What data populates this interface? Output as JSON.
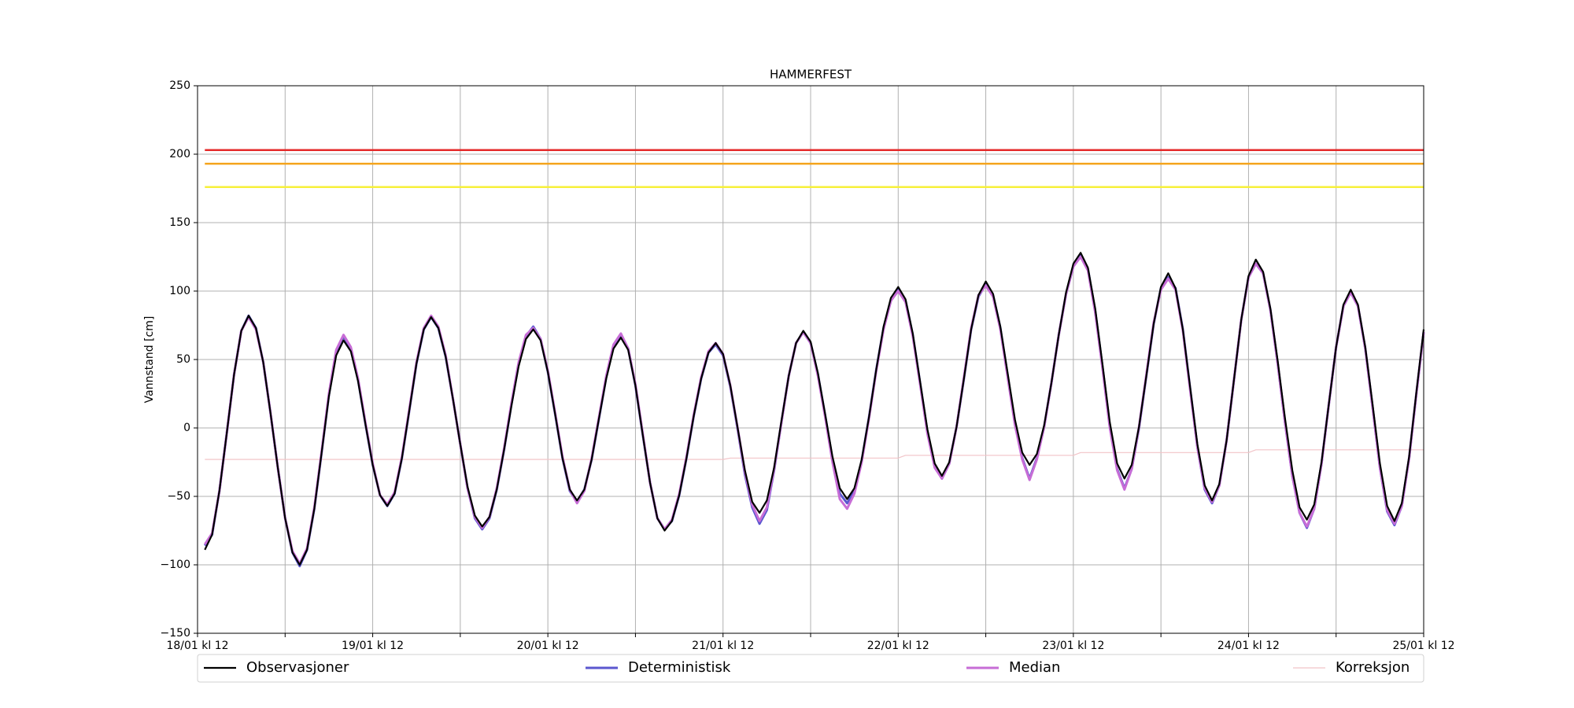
{
  "chart_data": {
    "type": "line",
    "title": "HAMMERFEST",
    "ylabel": "Vannstand [cm]",
    "xlim": [
      0,
      168
    ],
    "ylim": [
      -150,
      250
    ],
    "yticks": [
      {
        "value": -150,
        "label": "−150"
      },
      {
        "value": -100,
        "label": "−100"
      },
      {
        "value": -50,
        "label": "−50"
      },
      0,
      50,
      100,
      150,
      200,
      250
    ],
    "xticks": [
      {
        "value": 0,
        "label": "18/01 kl 12"
      },
      {
        "value": 24,
        "label": "19/01 kl 12"
      },
      {
        "value": 48,
        "label": "20/01 kl 12"
      },
      {
        "value": 72,
        "label": "21/01 kl 12"
      },
      {
        "value": 96,
        "label": "22/01 kl 12"
      },
      {
        "value": 120,
        "label": "23/01 kl 12"
      },
      {
        "value": 144,
        "label": "24/01 kl 12"
      },
      {
        "value": 168,
        "label": "25/01 kl 12"
      }
    ],
    "xminor_ticks": [
      12,
      36,
      60,
      84,
      108,
      132,
      156
    ],
    "grid": true,
    "legend": "below",
    "thresholds": [
      {
        "value": 203,
        "color": "#e42a2a",
        "xlim": [
          1,
          168
        ]
      },
      {
        "value": 193,
        "color": "#f5a41c",
        "xlim": [
          1,
          168
        ]
      },
      {
        "value": 176,
        "color": "#f7f03a",
        "xlim": [
          1,
          168
        ]
      }
    ],
    "x": [
      1,
      2,
      3,
      4,
      5,
      6,
      7,
      8,
      9,
      10,
      11,
      12,
      13,
      14,
      15,
      16,
      17,
      18,
      19,
      20,
      21,
      22,
      23,
      24,
      25,
      26,
      27,
      28,
      29,
      30,
      31,
      32,
      33,
      34,
      35,
      36,
      37,
      38,
      39,
      40,
      41,
      42,
      43,
      44,
      45,
      46,
      47,
      48,
      49,
      50,
      51,
      52,
      53,
      54,
      55,
      56,
      57,
      58,
      59,
      60,
      61,
      62,
      63,
      64,
      65,
      66,
      67,
      68,
      69,
      70,
      71,
      72,
      73,
      74,
      75,
      76,
      77,
      78,
      79,
      80,
      81,
      82,
      83,
      84,
      85,
      86,
      87,
      88,
      89,
      90,
      91,
      92,
      93,
      94,
      95,
      96,
      97,
      98,
      99,
      100,
      101,
      102,
      103,
      104,
      105,
      106,
      107,
      108,
      109,
      110,
      111,
      112,
      113,
      114,
      115,
      116,
      117,
      118,
      119,
      120,
      121,
      122,
      123,
      124,
      125,
      126,
      127,
      128,
      129,
      130,
      131,
      132,
      133,
      134,
      135,
      136,
      137,
      138,
      139,
      140,
      141,
      142,
      143,
      144,
      145,
      146,
      147,
      148,
      149,
      150,
      151,
      152,
      153,
      154,
      155,
      156,
      157,
      158,
      159,
      160,
      161,
      162,
      163,
      164,
      165,
      166,
      167,
      168
    ],
    "series": [
      {
        "name": "Observasjoner",
        "color": "#000000",
        "width": 2.2,
        "values": [
          -89,
          -78,
          -46,
          -4,
          39,
          71,
          82,
          73,
          48,
          11,
          -29,
          -66,
          -91,
          -100,
          -89,
          -59,
          -18,
          23,
          53,
          64,
          56,
          34,
          3,
          -27,
          -49,
          -57,
          -48,
          -22,
          12,
          47,
          72,
          81,
          73,
          52,
          21,
          -12,
          -43,
          -64,
          -72,
          -65,
          -45,
          -16,
          16,
          45,
          65,
          72,
          64,
          41,
          10,
          -22,
          -45,
          -53,
          -45,
          -23,
          7,
          36,
          58,
          66,
          57,
          31,
          -5,
          -40,
          -66,
          -75,
          -68,
          -49,
          -22,
          9,
          36,
          55,
          62,
          54,
          31,
          0,
          -31,
          -54,
          -62,
          -53,
          -29,
          5,
          38,
          62,
          71,
          63,
          40,
          10,
          -21,
          -44,
          -52,
          -44,
          -23,
          8,
          43,
          74,
          95,
          103,
          94,
          69,
          34,
          -1,
          -26,
          -35,
          -25,
          1,
          36,
          72,
          97,
          107,
          98,
          74,
          40,
          6,
          -18,
          -27,
          -19,
          2,
          33,
          68,
          99,
          120,
          128,
          117,
          87,
          46,
          4,
          -26,
          -37,
          -27,
          1,
          38,
          76,
          103,
          113,
          102,
          72,
          30,
          -12,
          -42,
          -53,
          -41,
          -9,
          35,
          79,
          111,
          123,
          114,
          87,
          49,
          7,
          -31,
          -58,
          -67,
          -56,
          -25,
          17,
          59,
          90,
          101,
          90,
          59,
          17,
          -26,
          -57,
          -68,
          -55,
          -21,
          26,
          72
        ]
      },
      {
        "name": "Deterministisk",
        "color": "#5b57cf",
        "width": 3,
        "values": [
          -86,
          -78,
          -46,
          -4,
          39,
          71,
          82,
          73,
          48,
          11,
          -29,
          -66,
          -91,
          -101,
          -89,
          -59,
          -18,
          24,
          56,
          67,
          58,
          35,
          3,
          -27,
          -49,
          -57,
          -48,
          -22,
          12,
          47,
          72,
          81,
          73,
          52,
          21,
          -12,
          -44,
          -66,
          -74,
          -66,
          -45,
          -16,
          17,
          47,
          67,
          74,
          65,
          41,
          10,
          -22,
          -46,
          -54,
          -45,
          -23,
          7,
          37,
          60,
          68,
          58,
          31,
          -5,
          -40,
          -66,
          -74,
          -68,
          -49,
          -22,
          9,
          36,
          55,
          61,
          53,
          30,
          -1,
          -34,
          -58,
          -70,
          -60,
          -31,
          4,
          38,
          62,
          70,
          62,
          39,
          9,
          -23,
          -48,
          -55,
          -46,
          -24,
          8,
          43,
          73,
          93,
          101,
          93,
          68,
          33,
          -3,
          -28,
          -37,
          -26,
          1,
          36,
          72,
          96,
          105,
          97,
          73,
          38,
          3,
          -22,
          -37,
          -22,
          1,
          33,
          68,
          98,
          118,
          126,
          116,
          85,
          44,
          1,
          -30,
          -44,
          -30,
          0,
          38,
          76,
          102,
          110,
          102,
          72,
          29,
          -14,
          -45,
          -55,
          -42,
          -9,
          35,
          79,
          110,
          120,
          113,
          86,
          47,
          4,
          -35,
          -62,
          -73,
          -59,
          -26,
          17,
          59,
          89,
          99,
          89,
          58,
          15,
          -29,
          -61,
          -71,
          -57,
          -22,
          25,
          70
        ]
      },
      {
        "name": "Median",
        "color": "#c76dd6",
        "width": 3,
        "values": [
          -85,
          -77,
          -46,
          -4,
          39,
          71,
          81,
          72,
          48,
          11,
          -29,
          -66,
          -90,
          -99,
          -88,
          -58,
          -17,
          25,
          57,
          68,
          59,
          36,
          4,
          -26,
          -49,
          -56,
          -47,
          -21,
          13,
          48,
          73,
          82,
          74,
          53,
          21,
          -12,
          -44,
          -65,
          -73,
          -65,
          -44,
          -15,
          18,
          48,
          68,
          73,
          65,
          42,
          11,
          -21,
          -45,
          -55,
          -46,
          -22,
          8,
          38,
          61,
          69,
          58,
          32,
          -4,
          -40,
          -66,
          -74,
          -67,
          -48,
          -21,
          10,
          37,
          56,
          62,
          54,
          31,
          0,
          -32,
          -56,
          -68,
          -58,
          -30,
          4,
          38,
          62,
          70,
          62,
          38,
          8,
          -25,
          -52,
          -59,
          -48,
          -25,
          7,
          42,
          72,
          93,
          100,
          92,
          67,
          32,
          -4,
          -29,
          -37,
          -26,
          1,
          37,
          73,
          97,
          104,
          96,
          72,
          37,
          2,
          -23,
          -38,
          -23,
          1,
          33,
          68,
          98,
          118,
          125,
          115,
          84,
          43,
          0,
          -31,
          -45,
          -30,
          1,
          39,
          77,
          101,
          109,
          101,
          71,
          28,
          -14,
          -44,
          -54,
          -42,
          -9,
          35,
          79,
          110,
          120,
          113,
          86,
          47,
          4,
          -35,
          -62,
          -72,
          -59,
          -26,
          17,
          59,
          89,
          99,
          89,
          58,
          15,
          -29,
          -60,
          -70,
          -57,
          -22,
          25,
          70
        ]
      },
      {
        "name": "Korreksjon",
        "color": "#f2c4c8",
        "width": 1.2,
        "x": [
          1,
          72,
          73,
          96,
          97,
          120,
          121,
          144,
          145,
          168
        ],
        "values": [
          -23,
          -23,
          -22,
          -22,
          -20,
          -20,
          -18,
          -18,
          -16,
          -16
        ]
      }
    ]
  }
}
